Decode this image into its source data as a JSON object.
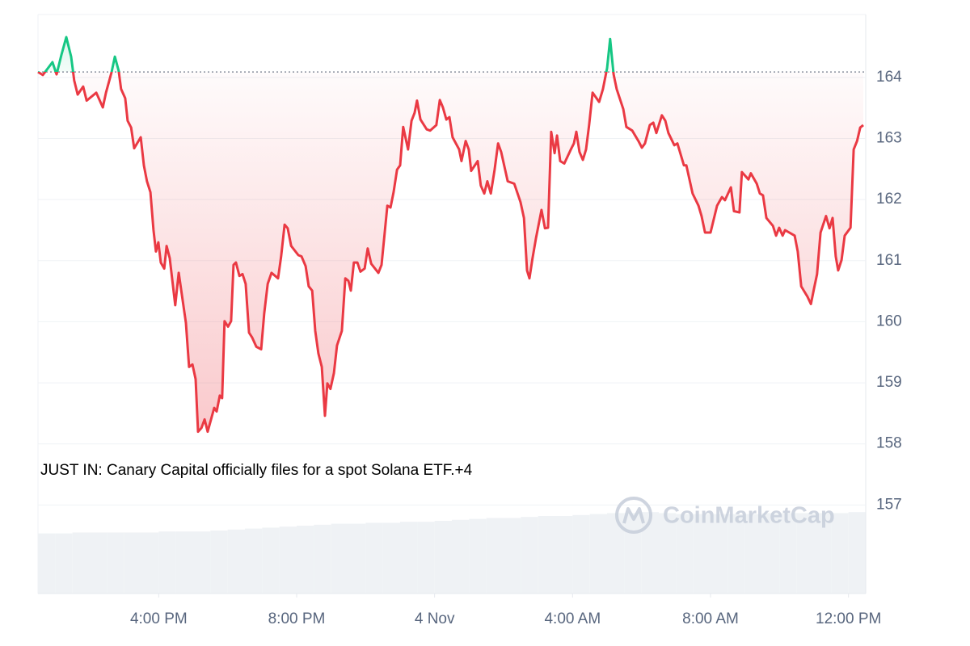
{
  "chart_data": {
    "type": "line",
    "x": [
      12.5,
      12.64,
      12.92,
      13.04,
      13.18,
      13.32,
      13.46,
      13.55,
      13.65,
      13.81,
      13.91,
      14.19,
      14.38,
      14.47,
      14.63,
      14.73,
      14.84,
      14.91,
      15.03,
      15.1,
      15.2,
      15.29,
      15.48,
      15.57,
      15.66,
      15.76,
      15.85,
      15.92,
      15.99,
      16.06,
      16.16,
      16.23,
      16.32,
      16.48,
      16.58,
      16.79,
      16.88,
      16.98,
      17.07,
      17.14,
      17.24,
      17.33,
      17.42,
      17.61,
      17.68,
      17.77,
      17.84,
      17.91,
      18.01,
      18.1,
      18.17,
      18.24,
      18.34,
      18.43,
      18.52,
      18.62,
      18.71,
      18.83,
      18.97,
      19.06,
      19.16,
      19.27,
      19.46,
      19.55,
      19.65,
      19.74,
      19.84,
      20.05,
      20.14,
      20.26,
      20.35,
      20.45,
      20.54,
      20.63,
      20.73,
      20.82,
      20.89,
      20.98,
      21.08,
      21.17,
      21.31,
      21.41,
      21.5,
      21.57,
      21.66,
      21.76,
      21.85,
      21.97,
      22.06,
      22.16,
      22.37,
      22.46,
      22.55,
      22.63,
      22.72,
      22.81,
      22.91,
      23.0,
      23.09,
      23.23,
      23.33,
      23.42,
      23.49,
      23.59,
      23.77,
      23.87,
      24.05,
      24.15,
      24.24,
      24.34,
      24.43,
      24.52,
      24.71,
      24.78,
      24.9,
      24.99,
      25.06,
      25.25,
      25.34,
      25.44,
      25.53,
      25.63,
      25.74,
      25.84,
      25.93,
      26.12,
      26.31,
      26.49,
      26.59,
      26.68,
      26.75,
      26.84,
      26.94,
      27.1,
      27.2,
      27.29,
      27.38,
      27.48,
      27.55,
      27.64,
      27.76,
      27.95,
      28.04,
      28.11,
      28.2,
      28.3,
      28.39,
      28.48,
      28.58,
      28.77,
      28.88,
      29.0,
      29.09,
      29.19,
      29.28,
      29.47,
      29.56,
      29.73,
      29.91,
      30.01,
      30.1,
      30.24,
      30.34,
      30.43,
      30.59,
      30.69,
      30.78,
      30.95,
      31.04,
      31.23,
      31.3,
      31.48,
      31.65,
      31.74,
      31.84,
      32.0,
      32.19,
      32.33,
      32.42,
      32.59,
      32.68,
      32.84,
      32.91,
      33.1,
      33.17,
      33.34,
      33.43,
      33.52,
      33.62,
      33.81,
      33.9,
      33.99,
      34.09,
      34.16,
      34.44,
      34.53,
      34.63,
      34.81,
      34.91,
      35.0,
      35.09,
      35.19,
      35.35,
      35.45,
      35.54,
      35.63,
      35.7,
      35.8,
      35.89,
      36.06,
      36.15,
      36.25,
      36.34,
      36.43
    ],
    "series": [
      {
        "color": "#ea3943",
        "up_color": "#16c784",
        "values": [
          164.09,
          164.04,
          164.25,
          164.05,
          164.37,
          164.66,
          164.34,
          163.95,
          163.72,
          163.85,
          163.62,
          163.75,
          163.51,
          163.75,
          164.08,
          164.34,
          164.11,
          163.81,
          163.66,
          163.29,
          163.18,
          162.84,
          163.02,
          162.56,
          162.3,
          162.12,
          161.5,
          161.15,
          161.3,
          160.97,
          160.87,
          161.24,
          161.04,
          160.27,
          160.8,
          159.98,
          159.26,
          159.3,
          159.06,
          158.2,
          158.26,
          158.4,
          158.2,
          158.59,
          158.53,
          158.79,
          158.75,
          160.01,
          159.92,
          160.01,
          160.93,
          160.97,
          160.75,
          160.78,
          160.62,
          159.82,
          159.74,
          159.59,
          159.55,
          160.14,
          160.62,
          160.8,
          160.71,
          161.07,
          161.59,
          161.53,
          161.24,
          161.09,
          161.07,
          160.91,
          160.58,
          160.51,
          159.85,
          159.48,
          159.26,
          158.46,
          158.99,
          158.9,
          159.16,
          159.61,
          159.85,
          160.71,
          160.67,
          160.51,
          160.97,
          160.97,
          160.82,
          160.87,
          161.2,
          160.95,
          160.8,
          160.93,
          161.44,
          161.9,
          161.87,
          162.12,
          162.49,
          162.56,
          163.19,
          162.82,
          163.29,
          163.42,
          163.62,
          163.31,
          163.15,
          163.13,
          163.22,
          163.63,
          163.51,
          163.31,
          163.35,
          163.02,
          162.82,
          162.63,
          162.96,
          162.82,
          162.47,
          162.63,
          162.23,
          162.1,
          162.3,
          162.1,
          162.49,
          162.92,
          162.78,
          162.3,
          162.26,
          161.96,
          161.7,
          160.84,
          160.71,
          161.04,
          161.37,
          161.83,
          161.53,
          161.54,
          163.11,
          162.76,
          163.05,
          162.63,
          162.59,
          162.82,
          162.92,
          163.11,
          162.78,
          162.65,
          162.82,
          163.22,
          163.75,
          163.6,
          163.81,
          164.15,
          164.63,
          164.05,
          163.81,
          163.48,
          163.19,
          163.13,
          162.96,
          162.85,
          162.92,
          163.22,
          163.26,
          163.09,
          163.38,
          163.29,
          163.09,
          162.89,
          162.92,
          162.56,
          162.56,
          162.1,
          161.9,
          161.73,
          161.46,
          161.46,
          161.9,
          162.04,
          161.99,
          162.2,
          161.81,
          161.79,
          162.45,
          162.33,
          162.43,
          162.26,
          162.1,
          162.07,
          161.7,
          161.57,
          161.41,
          161.54,
          161.41,
          161.5,
          161.41,
          161.15,
          160.58,
          160.41,
          160.29,
          160.54,
          160.78,
          161.46,
          161.73,
          161.53,
          161.7,
          161.07,
          160.84,
          161.01,
          161.41,
          161.54,
          162.82,
          162.96,
          163.18,
          163.22
        ]
      }
    ],
    "baseline": 164.09,
    "xlim": [
      12.5,
      36.5
    ],
    "xticks": [
      {
        "value": 16,
        "label": "4:00 PM"
      },
      {
        "value": 20,
        "label": "8:00 PM"
      },
      {
        "value": 24,
        "label": "4 Nov"
      },
      {
        "value": 28,
        "label": "4:00 AM"
      },
      {
        "value": 32,
        "label": "8:00 AM"
      },
      {
        "value": 36,
        "label": "12:00 PM"
      }
    ],
    "ylim": [
      155.55,
      165.03
    ],
    "yticks": [
      157,
      158,
      159,
      160,
      161,
      162,
      163,
      164
    ],
    "grid": true,
    "annotation": "JUST IN: Canary Capital officially files for a spot Solana ETF.+4",
    "watermark": "CoinMarketCap",
    "volume": {
      "color": "#eff2f5",
      "lim": [
        0,
        100
      ],
      "values": [
        62,
        62,
        63,
        63,
        63,
        63,
        63,
        64,
        64,
        64,
        65,
        66,
        67,
        68,
        69,
        70,
        71,
        72,
        72,
        73,
        73,
        74,
        74,
        75,
        76,
        77,
        78,
        78,
        79,
        80,
        80,
        81,
        82,
        83,
        83,
        84,
        83,
        82,
        82,
        82,
        82,
        82,
        83,
        83,
        83,
        83,
        83,
        84
      ]
    }
  }
}
